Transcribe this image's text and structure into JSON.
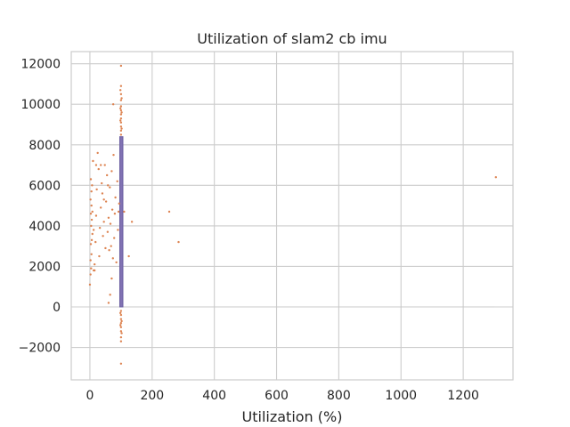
{
  "chart_data": {
    "type": "scatter",
    "title": "Utilization of slam2 cb imu",
    "xlabel": "Utilization (%)",
    "ylabel": "",
    "xlim": [
      -60,
      1360
    ],
    "ylim": [
      -3600,
      12600
    ],
    "xticks": [
      0,
      200,
      400,
      600,
      800,
      1000,
      1200
    ],
    "yticks": [
      -2000,
      0,
      2000,
      4000,
      6000,
      8000,
      10000,
      12000
    ],
    "xtick_labels": [
      "0",
      "200",
      "400",
      "600",
      "800",
      "1000",
      "1200"
    ],
    "ytick_labels": [
      "−2000",
      "0",
      "2000",
      "4000",
      "6000",
      "8000",
      "10000",
      "12000"
    ],
    "grid": true,
    "style": "seaborn-whitegrid",
    "colors": {
      "points": "#dd8452",
      "box_fill": "#8172b3",
      "box_edge": "#6b5ea0",
      "grid": "#cccccc",
      "spine": "#cccccc",
      "text": "#262626"
    },
    "box": {
      "x_range": [
        96,
        106
      ],
      "y_range": [
        0,
        8400
      ]
    },
    "zero_line": {
      "x_range": [
        100,
        1300
      ],
      "y": 0
    },
    "series": [
      {
        "values": [
          [
            0,
            1100
          ],
          [
            2,
            1600
          ],
          [
            4,
            1900
          ],
          [
            2,
            2300
          ],
          [
            5,
            2600
          ],
          [
            3,
            3100
          ],
          [
            6,
            3300
          ],
          [
            8,
            3600
          ],
          [
            4,
            4000
          ],
          [
            6,
            4300
          ],
          [
            3,
            4600
          ],
          [
            5,
            5000
          ],
          [
            2,
            5300
          ],
          [
            5,
            5700
          ],
          [
            7,
            6000
          ],
          [
            3,
            6300
          ],
          [
            10,
            7200
          ],
          [
            12,
            1800
          ],
          [
            15,
            2100
          ],
          [
            18,
            3200
          ],
          [
            20,
            4500
          ],
          [
            22,
            5800
          ],
          [
            25,
            7600
          ],
          [
            28,
            6800
          ],
          [
            30,
            2500
          ],
          [
            32,
            3900
          ],
          [
            35,
            4900
          ],
          [
            38,
            6100
          ],
          [
            40,
            5600
          ],
          [
            42,
            3500
          ],
          [
            45,
            4200
          ],
          [
            48,
            7000
          ],
          [
            50,
            2900
          ],
          [
            52,
            5200
          ],
          [
            55,
            6500
          ],
          [
            57,
            3700
          ],
          [
            60,
            4400
          ],
          [
            60,
            200
          ],
          [
            62,
            2800
          ],
          [
            64,
            5900
          ],
          [
            66,
            4100
          ],
          [
            68,
            3000
          ],
          [
            70,
            6700
          ],
          [
            72,
            4800
          ],
          [
            74,
            2400
          ],
          [
            75,
            10000
          ],
          [
            76,
            7500
          ],
          [
            78,
            3400
          ],
          [
            80,
            4600
          ],
          [
            82,
            5400
          ],
          [
            85,
            2200
          ],
          [
            88,
            6200
          ],
          [
            90,
            3800
          ],
          [
            92,
            4700
          ],
          [
            94,
            5100
          ],
          [
            20,
            7000
          ],
          [
            35,
            7000
          ],
          [
            45,
            5300
          ],
          [
            58,
            6000
          ],
          [
            65,
            600
          ],
          [
            70,
            1400
          ],
          [
            15,
            1800
          ],
          [
            8,
            4700
          ],
          [
            12,
            3800
          ],
          [
            100,
            11900
          ],
          [
            100,
            10900
          ],
          [
            100,
            10500
          ],
          [
            100,
            10200
          ],
          [
            100,
            9900
          ],
          [
            100,
            9700
          ],
          [
            100,
            9500
          ],
          [
            100,
            9300
          ],
          [
            100,
            9100
          ],
          [
            100,
            8900
          ],
          [
            100,
            8700
          ],
          [
            100,
            8500
          ],
          [
            100,
            -200
          ],
          [
            100,
            -400
          ],
          [
            100,
            -600
          ],
          [
            100,
            -800
          ],
          [
            100,
            -1000
          ],
          [
            100,
            -1200
          ],
          [
            100,
            -1500
          ],
          [
            100,
            -1700
          ],
          [
            100,
            -2800
          ],
          [
            98,
            10700
          ],
          [
            102,
            10300
          ],
          [
            98,
            9800
          ],
          [
            102,
            9600
          ],
          [
            98,
            9200
          ],
          [
            102,
            8800
          ],
          [
            98,
            -300
          ],
          [
            102,
            -700
          ],
          [
            98,
            -900
          ],
          [
            102,
            -1300
          ],
          [
            110,
            4700
          ],
          [
            125,
            2500
          ],
          [
            135,
            4200
          ],
          [
            255,
            4700
          ],
          [
            285,
            3200
          ],
          [
            1305,
            6400
          ]
        ]
      }
    ]
  }
}
